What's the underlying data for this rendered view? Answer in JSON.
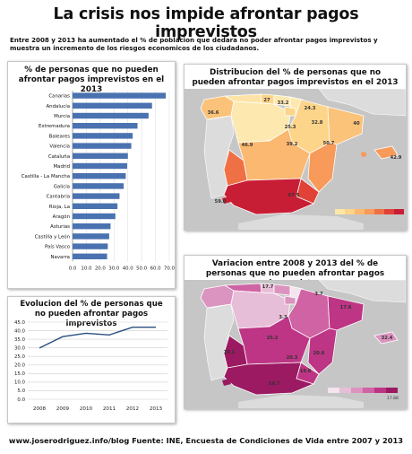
{
  "title": "La crisis nos impide afrontar pagos imprevistos",
  "intro": "Entre 2008 y 2013 ha aumentado el % de poblacion que dedara no poder afrontar pagos imprevistos y muestra un incremento de los riesgos economicos de los ciudadanos.",
  "footer": "www.joserodriguez.info/blog Fuente: INE, Encuesta de Condiciones de Vida entre 2007 y 2013",
  "chart_data": [
    {
      "type": "bar",
      "orientation": "horizontal",
      "title": "% de personas que no pueden afrontar pagos imprevistos en el 2013",
      "categories": [
        "Canarias",
        "Andalucía",
        "Murcia",
        "Extremadura",
        "Baleares",
        "Valencia",
        "Cataluña",
        "Madrid",
        "Castilla - La Mancha",
        "Galicia",
        "Cantabria",
        "Rioja, La",
        "Aragón",
        "Asturias",
        "Castilla y León",
        "País Vasco",
        "Navarra"
      ],
      "values": [
        67.5,
        57.5,
        55,
        47,
        43.5,
        42.5,
        40,
        39.5,
        38.5,
        37,
        34,
        32.5,
        31,
        27.5,
        26.5,
        25.5,
        25
      ],
      "xlim": [
        0,
        70
      ],
      "xticks": [
        "0.0",
        "10.0",
        "20.0",
        "30.0",
        "40.0",
        "50.0",
        "60.0",
        "70.0"
      ],
      "color": "#4a72b0"
    },
    {
      "type": "line",
      "title": "Evolucion del % de personas que no pueden afrontar pagos imprevistos",
      "x": [
        "2008",
        "2009",
        "2010",
        "2011",
        "2012",
        "2013"
      ],
      "values": [
        29.9,
        36.5,
        38.5,
        37.5,
        42.0,
        42.0
      ],
      "ylim": [
        0,
        45
      ],
      "yticks": [
        "0.0",
        "5.0",
        "10.0",
        "15.0",
        "20.0",
        "25.0",
        "30.0",
        "35.0",
        "40.0",
        "45.0"
      ],
      "color": "#2a4f80"
    },
    {
      "type": "choropleth",
      "title": "Distribucion del % de personas que no pueden afrontar pagos imprevistos en el 2013",
      "labels": [
        "27",
        "33.2",
        "24.3",
        "36.6",
        "32.8",
        "40",
        "25.3",
        "39.2",
        "50.7",
        "46.9",
        "42.9",
        "67.5",
        "59.0"
      ],
      "colors": [
        "#fde8a8",
        "#fcd58a",
        "#fbb870",
        "#f79a5a",
        "#f07046",
        "#e14238",
        "#c81e35"
      ]
    },
    {
      "type": "choropleth",
      "title": "Variacion entre 2008 y 2013 del % de personas que no pueden afrontar pagos imprevistos",
      "labels": [
        "17.7",
        "3.7",
        "3.3",
        "17.6",
        "25.2",
        "18.1",
        "20.6",
        "20.3",
        "19.7",
        "19.6",
        "32.4"
      ],
      "colors": [
        "#f3e4ee",
        "#e7bed7",
        "#db93bf",
        "#cf63a4",
        "#bd3584",
        "#9b1a62"
      ],
      "legend_ticks": [
        "",
        "17.88"
      ]
    }
  ]
}
